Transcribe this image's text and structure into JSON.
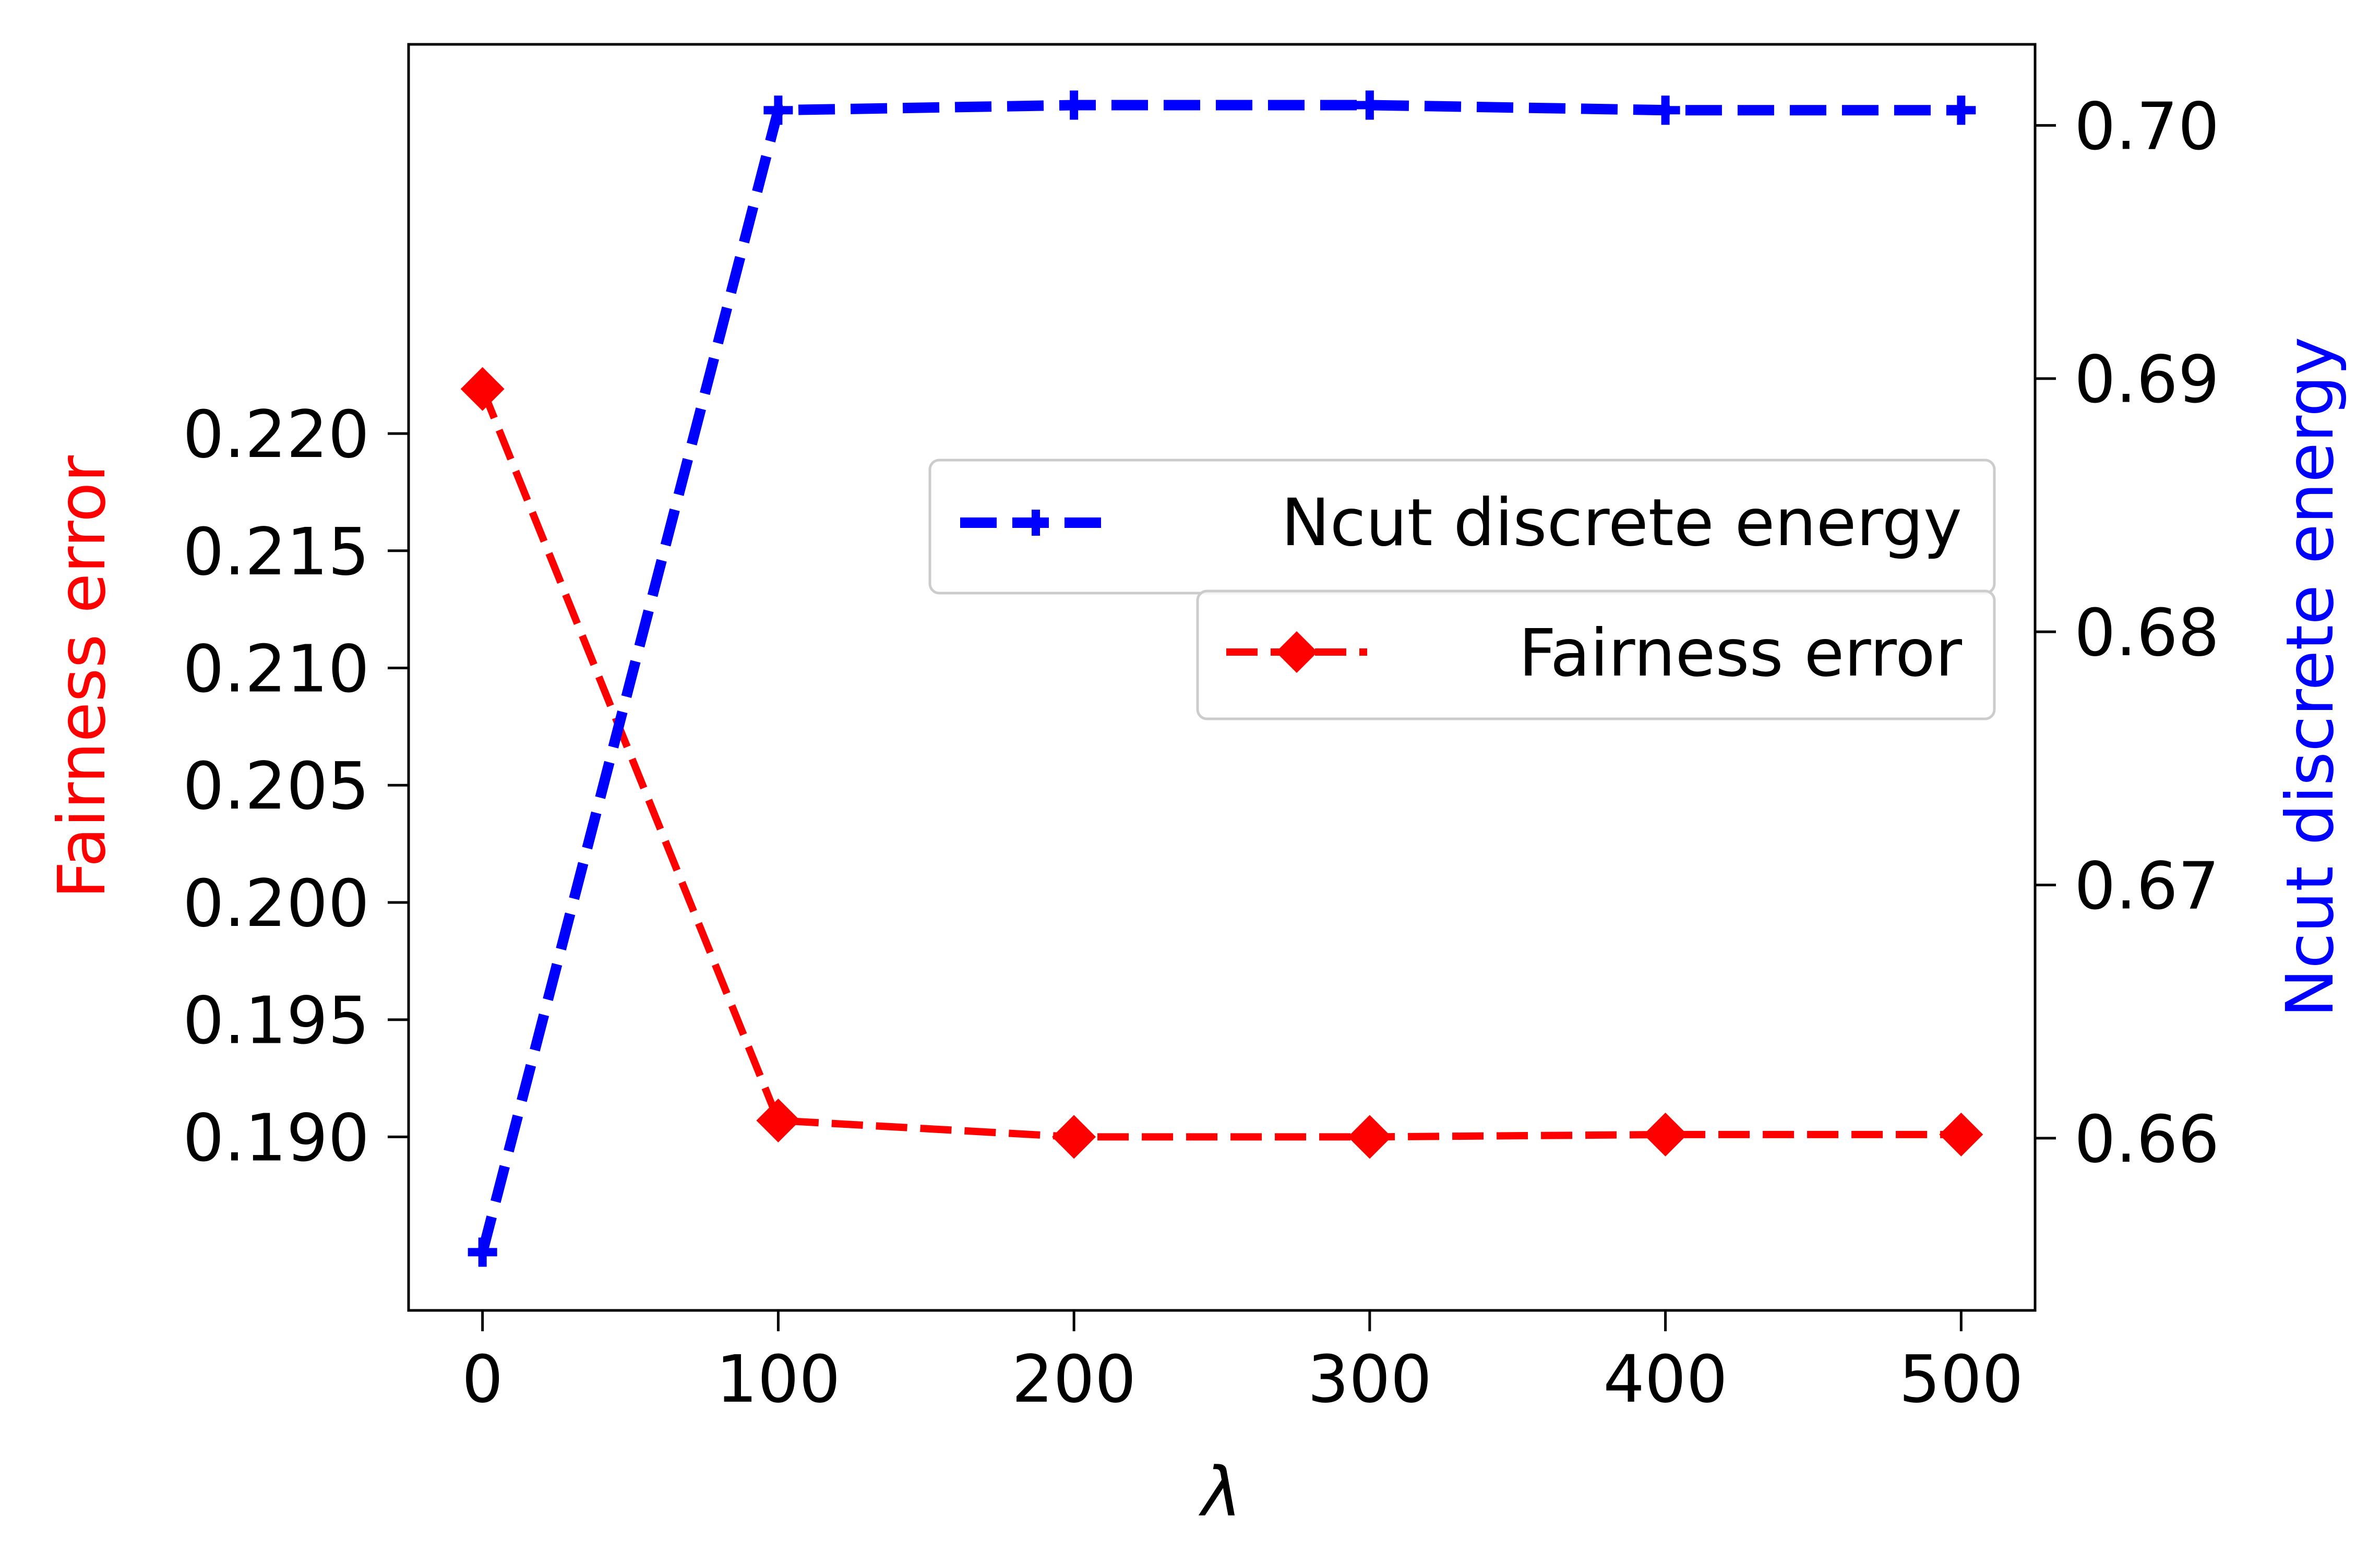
{
  "chart_data": {
    "type": "line",
    "x": [
      0,
      100,
      200,
      300,
      400,
      500
    ],
    "xlabel": "λ",
    "xticks": [
      "0",
      "100",
      "200",
      "300",
      "400",
      "500"
    ],
    "xlim": [
      -25,
      525
    ],
    "y_left": {
      "label": "Fairness error",
      "color": "#ff0000",
      "ylim": [
        0.1826,
        0.2366
      ],
      "ticks": [
        "0.190",
        "0.195",
        "0.200",
        "0.205",
        "0.210",
        "0.215",
        "0.220"
      ],
      "tick_values": [
        0.19,
        0.195,
        0.2,
        0.205,
        0.21,
        0.215,
        0.22
      ]
    },
    "y_right": {
      "label": "Ncut discrete energy",
      "color": "#0000ff",
      "ylim": [
        0.6532,
        0.7032
      ],
      "ticks": [
        "0.66",
        "0.67",
        "0.68",
        "0.69",
        "0.70"
      ],
      "tick_values": [
        0.66,
        0.67,
        0.68,
        0.69,
        0.7
      ]
    },
    "series": [
      {
        "name": "Ncut discrete energy",
        "axis": "right",
        "color": "#0000ff",
        "marker": "plus",
        "linestyle": "dashed",
        "values": [
          0.6555,
          0.7006,
          0.7008,
          0.7008,
          0.7006,
          0.7006
        ]
      },
      {
        "name": "Fairness error",
        "axis": "left",
        "color": "#ff0000",
        "marker": "diamond",
        "linestyle": "dashed",
        "values": [
          0.2219,
          0.1907,
          0.19,
          0.19,
          0.1901,
          0.1901
        ]
      }
    ],
    "legend": "center-right",
    "grid": false
  }
}
